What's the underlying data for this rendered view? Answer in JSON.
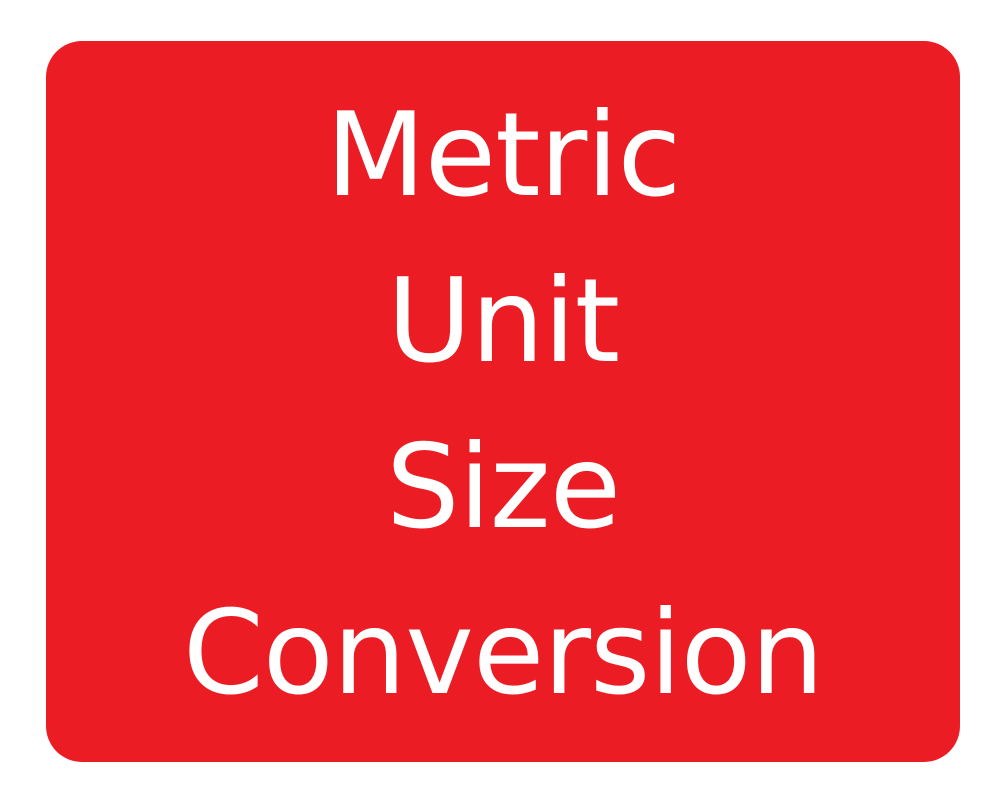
{
  "tile": {
    "background_color": "#ec1c24",
    "text_color": "#ffffff",
    "lines": [
      "Metric",
      "Unit",
      "Size",
      "Conversion"
    ]
  }
}
